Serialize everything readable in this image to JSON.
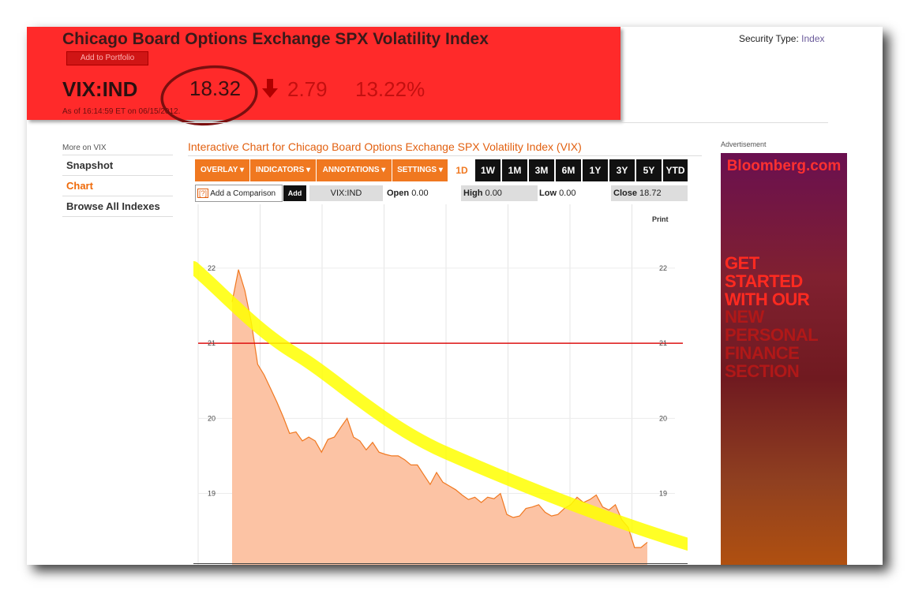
{
  "header": {
    "title": "Chicago Board Options Exchange SPX Volatility Index",
    "add_to_portfolio": "Add to Portfolio",
    "ticker": "VIX:IND",
    "price": "18.32",
    "change": "2.79",
    "change_pct": "13.22%",
    "as_of": "As of 16:14:59 ET on 06/15/2012.",
    "security_type_label": "Security Type:",
    "security_type_value": "Index",
    "direction_icon": "down-arrow-icon"
  },
  "sidebar": {
    "heading": "More on VIX",
    "items": [
      {
        "label": "Snapshot",
        "active": false
      },
      {
        "label": "Chart",
        "active": true
      },
      {
        "label": "Browse All Indexes",
        "active": false
      }
    ]
  },
  "chart_panel": {
    "title": "Interactive Chart for Chicago Board Options Exchange SPX Volatility Index (VIX)",
    "menus": [
      "OVERLAY ▾",
      "INDICATORS ▾",
      "ANNOTATIONS ▾",
      "SETTINGS ▾"
    ],
    "active_range": "1D",
    "ranges": [
      "1W",
      "1M",
      "3M",
      "6M",
      "1Y",
      "3Y",
      "5Y",
      "YTD"
    ],
    "comparison_placeholder": "Add a Comparison",
    "help_mark": "[?]",
    "add_label": "Add",
    "symbol": "VIX:IND",
    "open_label": "Open",
    "open_value": "0.00",
    "high_label": "High",
    "high_value": "0.00",
    "low_label": "Low",
    "low_value": "0.00",
    "close_label": "Close",
    "close_value": "18.72",
    "print_label": "Print"
  },
  "chart_data": {
    "type": "area",
    "title": "",
    "xlabel": "",
    "ylabel": "",
    "ylim": [
      18.05,
      22.85
    ],
    "yticks": [
      19,
      20,
      21,
      22
    ],
    "reference_line": 21.0,
    "grid": true,
    "colors": {
      "area": "#fcc3a4",
      "line": "#f07820",
      "reference": "#dd1010",
      "highlight": "#ffff00"
    },
    "series": [
      {
        "x": [
          0,
          1,
          2,
          3,
          4,
          5,
          6,
          7,
          8,
          9,
          10,
          11,
          12,
          13,
          14,
          15,
          16,
          17,
          18,
          19,
          20,
          21,
          22,
          23,
          24,
          25,
          26,
          27,
          28,
          29,
          30,
          31,
          32,
          33,
          34,
          35,
          36,
          37,
          38,
          39,
          40,
          41,
          42,
          43,
          44,
          45,
          46,
          47,
          48,
          49,
          50,
          51,
          52,
          53,
          54,
          55,
          56,
          57,
          58,
          59,
          60,
          61,
          62,
          63,
          64,
          65
        ],
        "y": [
          21.55,
          21.98,
          21.7,
          21.28,
          20.72,
          20.58,
          20.4,
          20.22,
          20.02,
          19.8,
          19.82,
          19.7,
          19.75,
          19.7,
          19.55,
          19.72,
          19.75,
          19.88,
          20.0,
          19.75,
          19.7,
          19.58,
          19.68,
          19.55,
          19.52,
          19.5,
          19.5,
          19.45,
          19.38,
          19.38,
          19.25,
          19.12,
          19.28,
          19.15,
          19.1,
          19.05,
          18.98,
          18.92,
          18.95,
          18.88,
          18.95,
          18.93,
          19.0,
          18.72,
          18.68,
          18.7,
          18.8,
          18.82,
          18.85,
          18.75,
          18.7,
          18.72,
          18.8,
          18.85,
          18.95,
          18.88,
          18.92,
          18.98,
          18.82,
          18.78,
          18.85,
          18.65,
          18.55,
          18.28,
          18.28,
          18.35
        ]
      }
    ]
  },
  "advertisement": {
    "label": "Advertisement",
    "logo": "Bloomberg.com",
    "headline": [
      "GET",
      "STARTED",
      "WITH OUR"
    ],
    "subhead": [
      "NEW",
      "PERSONAL",
      "FINANCE",
      "SECTION"
    ]
  }
}
